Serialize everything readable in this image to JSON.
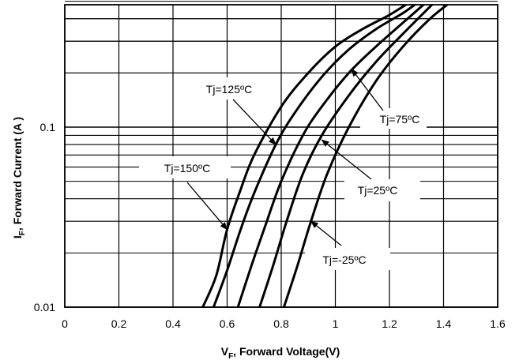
{
  "chart_data": {
    "type": "line",
    "xlabel_main": "V",
    "xlabel_sub": "F",
    "xlabel_rest": ", Forward Voltage(V)",
    "ylabel_main": "I",
    "ylabel_sub": "F",
    "ylabel_rest": ", Forward Current (A )",
    "xlim": [
      0,
      1.6
    ],
    "ylim": [
      0.01,
      0.5
    ],
    "y_scale": "log",
    "grid": true,
    "x_ticks": [
      0,
      0.2,
      0.4,
      0.6,
      0.8,
      1,
      1.2,
      1.4,
      1.6
    ],
    "x_tick_labels": [
      "0",
      "0.2",
      "0.4",
      "0.6",
      "0.8",
      "1",
      "1.2",
      "1.4",
      "1.6"
    ],
    "y_tick_labels": [
      {
        "value": 0.01,
        "label": "0.01"
      },
      {
        "value": 0.1,
        "label": "0.1"
      }
    ],
    "series": [
      {
        "name": "Tj=150ºC",
        "points": [
          [
            0.51,
            0.01
          ],
          [
            0.56,
            0.015
          ],
          [
            0.6,
            0.027
          ],
          [
            0.65,
            0.045
          ],
          [
            0.7,
            0.07
          ],
          [
            0.8,
            0.13
          ],
          [
            0.9,
            0.2
          ],
          [
            1.0,
            0.28
          ],
          [
            1.1,
            0.35
          ],
          [
            1.2,
            0.42
          ],
          [
            1.28,
            0.5
          ]
        ]
      },
      {
        "name": "Tj=125ºC",
        "points": [
          [
            0.55,
            0.01
          ],
          [
            0.6,
            0.016
          ],
          [
            0.65,
            0.027
          ],
          [
            0.7,
            0.043
          ],
          [
            0.78,
            0.08
          ],
          [
            0.85,
            0.12
          ],
          [
            0.95,
            0.19
          ],
          [
            1.05,
            0.27
          ],
          [
            1.15,
            0.35
          ],
          [
            1.25,
            0.43
          ],
          [
            1.31,
            0.5
          ]
        ]
      },
      {
        "name": "Tj=75ºC",
        "points": [
          [
            0.64,
            0.01
          ],
          [
            0.69,
            0.017
          ],
          [
            0.74,
            0.028
          ],
          [
            0.8,
            0.05
          ],
          [
            0.88,
            0.09
          ],
          [
            0.95,
            0.13
          ],
          [
            1.05,
            0.2
          ],
          [
            1.15,
            0.28
          ],
          [
            1.25,
            0.38
          ],
          [
            1.34,
            0.5
          ]
        ]
      },
      {
        "name": "Tj=25ºC",
        "points": [
          [
            0.72,
            0.01
          ],
          [
            0.77,
            0.017
          ],
          [
            0.82,
            0.03
          ],
          [
            0.88,
            0.055
          ],
          [
            0.95,
            0.09
          ],
          [
            1.05,
            0.15
          ],
          [
            1.15,
            0.23
          ],
          [
            1.25,
            0.33
          ],
          [
            1.37,
            0.5
          ]
        ]
      },
      {
        "name": "Tj=-25ºC",
        "points": [
          [
            0.81,
            0.01
          ],
          [
            0.86,
            0.017
          ],
          [
            0.91,
            0.03
          ],
          [
            0.97,
            0.055
          ],
          [
            1.05,
            0.1
          ],
          [
            1.15,
            0.18
          ],
          [
            1.25,
            0.28
          ],
          [
            1.35,
            0.4
          ],
          [
            1.43,
            0.5
          ]
        ]
      }
    ],
    "annotations": [
      {
        "text": "Tj=125ºC",
        "series": "Tj=125ºC",
        "point_at": [
          0.78,
          0.08
        ]
      },
      {
        "text": "Tj=150ºC",
        "series": "Tj=150ºC",
        "point_at": [
          0.6,
          0.027
        ]
      },
      {
        "text": "Tj=75ºC",
        "series": "Tj=75ºC",
        "point_at": [
          1.06,
          0.21
        ]
      },
      {
        "text": "Tj=25ºC",
        "series": "Tj=25ºC",
        "point_at": [
          0.95,
          0.085
        ]
      },
      {
        "text": "Tj=-25ºC",
        "series": "Tj=-25ºC",
        "point_at": [
          0.91,
          0.03
        ]
      }
    ]
  }
}
